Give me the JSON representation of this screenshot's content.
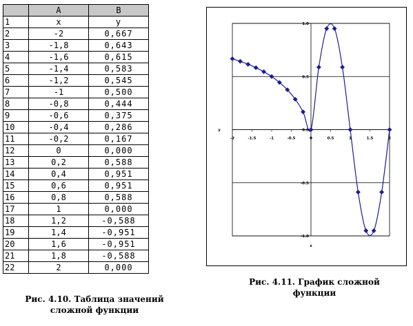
{
  "table": {
    "col_headers": [
      "A",
      "B"
    ],
    "header_row": {
      "num": "1",
      "a": "x",
      "b": "y"
    },
    "rows": [
      {
        "num": "2",
        "x": "-2",
        "y": "0,667"
      },
      {
        "num": "3",
        "x": "-1,8",
        "y": "0,643"
      },
      {
        "num": "4",
        "x": "-1,6",
        "y": "0,615"
      },
      {
        "num": "5",
        "x": "-1,4",
        "y": "0,583"
      },
      {
        "num": "6",
        "x": "-1,2",
        "y": "0,545"
      },
      {
        "num": "7",
        "x": "-1",
        "y": "0,500"
      },
      {
        "num": "8",
        "x": "-0,8",
        "y": "0,444"
      },
      {
        "num": "9",
        "x": "-0,6",
        "y": "0,375"
      },
      {
        "num": "10",
        "x": "-0,4",
        "y": "0,286"
      },
      {
        "num": "11",
        "x": "-0,2",
        "y": "0,167"
      },
      {
        "num": "12",
        "x": "0",
        "y": "0,000"
      },
      {
        "num": "13",
        "x": "0,2",
        "y": "0,588"
      },
      {
        "num": "14",
        "x": "0,4",
        "y": "0,951"
      },
      {
        "num": "15",
        "x": "0,6",
        "y": "0,951"
      },
      {
        "num": "16",
        "x": "0,8",
        "y": "0,588"
      },
      {
        "num": "17",
        "x": "1",
        "y": "0,000"
      },
      {
        "num": "18",
        "x": "1,2",
        "y": "-0,588"
      },
      {
        "num": "19",
        "x": "1,4",
        "y": "-0,951"
      },
      {
        "num": "20",
        "x": "1,6",
        "y": "-0,951"
      },
      {
        "num": "21",
        "x": "1,8",
        "y": "-0,588"
      },
      {
        "num": "22",
        "x": "2",
        "y": "0,000"
      }
    ]
  },
  "captions": {
    "table": "Рис. 4.10. Таблица значений сложной функции",
    "chart": "Рис. 4.11. График сложной функции"
  },
  "colors": {
    "series": "#1c1c96",
    "marker": "#1c1c96",
    "grid": "#000000"
  },
  "chart_data": {
    "type": "scatter",
    "x": [
      -2,
      -1.8,
      -1.6,
      -1.4,
      -1.2,
      -1,
      -0.8,
      -0.6,
      -0.4,
      -0.2,
      0,
      0.2,
      0.4,
      0.6,
      0.8,
      1,
      1.2,
      1.4,
      1.6,
      1.8,
      2
    ],
    "series": [
      {
        "values": [
          0.667,
          0.643,
          0.615,
          0.583,
          0.545,
          0.5,
          0.444,
          0.375,
          0.286,
          0.167,
          0,
          0.588,
          0.951,
          0.951,
          0.588,
          0,
          -0.588,
          -0.951,
          -0.951,
          -0.588,
          0
        ]
      }
    ],
    "xlim": [
      -2,
      2
    ],
    "ylim": [
      -1,
      1
    ],
    "x_ticks": [
      "-2",
      "-1.5",
      "-1",
      "-0.5",
      "0",
      "0.5",
      "1",
      "1.5",
      "2"
    ],
    "y_ticks": [
      "1.0",
      "0.5",
      "0.0",
      "-0.5",
      "-1.0"
    ],
    "xlabel": "x",
    "ylabel": "y",
    "grid": true,
    "smoothed": true,
    "legend": "none"
  }
}
